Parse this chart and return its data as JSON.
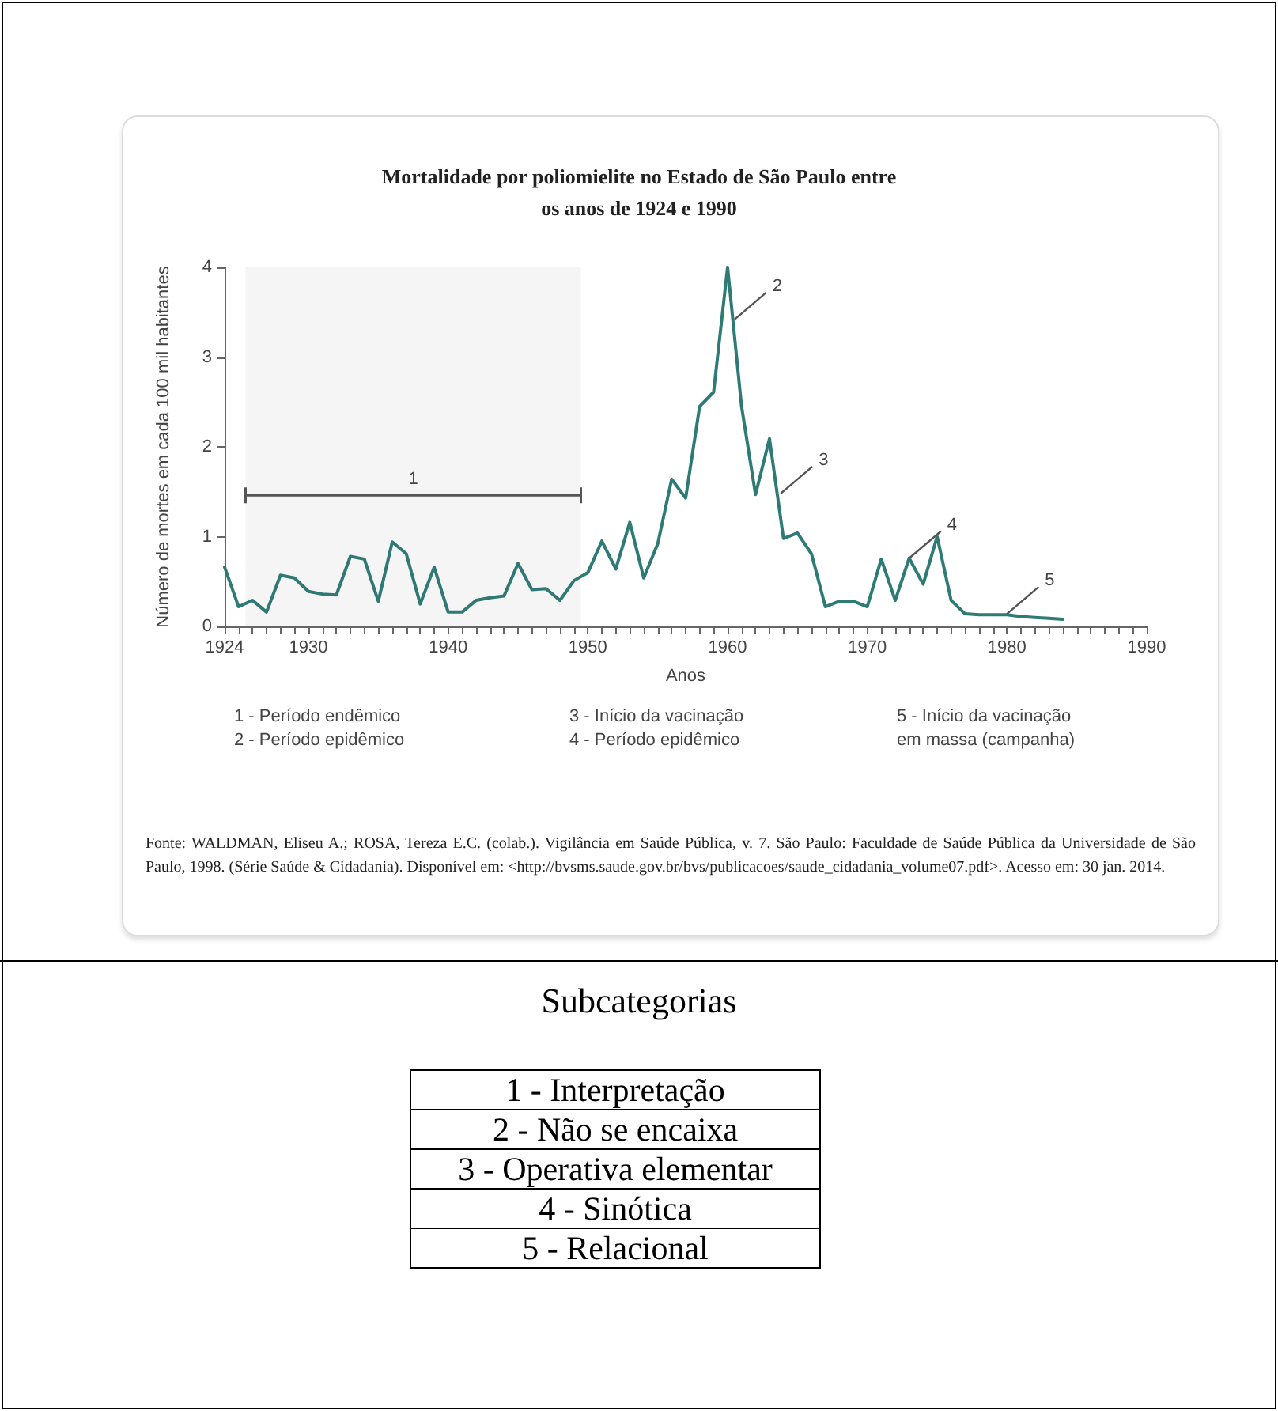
{
  "chart_data": [
    {
      "type": "line",
      "title": "Mortalidade por poliomielite no Estado de São Paulo entre os anos de 1924 e 1990",
      "xlabel": "Anos",
      "ylabel": "Número de mortes em cada 100 mil habitantes",
      "x": [
        1924,
        1925,
        1926,
        1927,
        1928,
        1929,
        1930,
        1931,
        1932,
        1933,
        1934,
        1935,
        1936,
        1937,
        1938,
        1939,
        1940,
        1941,
        1942,
        1943,
        1944,
        1945,
        1946,
        1947,
        1948,
        1949,
        1950,
        1951,
        1952,
        1953,
        1954,
        1955,
        1956,
        1957,
        1958,
        1959,
        1960,
        1961,
        1962,
        1963,
        1964,
        1965,
        1966,
        1967,
        1968,
        1969,
        1970,
        1971,
        1972,
        1973,
        1974,
        1975,
        1976,
        1977,
        1978,
        1979,
        1980,
        1981,
        1982,
        1983,
        1984
      ],
      "series": [
        {
          "color": "#2e7b76",
          "values": [
            0.66,
            0.22,
            0.29,
            0.16,
            0.57,
            0.54,
            0.39,
            0.36,
            0.35,
            0.78,
            0.75,
            0.28,
            0.94,
            0.81,
            0.25,
            0.66,
            0.16,
            0.16,
            0.29,
            0.32,
            0.34,
            0.7,
            0.41,
            0.42,
            0.29,
            0.51,
            0.6,
            0.95,
            0.64,
            1.16,
            0.54,
            0.92,
            1.64,
            1.43,
            2.45,
            2.61,
            4.0,
            2.45,
            1.47,
            2.09,
            0.98,
            1.04,
            0.81,
            0.22,
            0.28,
            0.28,
            0.22,
            0.75,
            0.29,
            0.76,
            0.47,
            1.0,
            0.29,
            0.14,
            0.13,
            0.13,
            0.13,
            0.11,
            0.1,
            0.09,
            0.08
          ]
        }
      ],
      "xlim": [
        1924,
        1990
      ],
      "xticks": [
        1924,
        {
          "value": 1925,
          "label": null
        },
        {
          "value": 1926,
          "label": null
        },
        {
          "value": 1927,
          "label": null
        },
        {
          "value": 1928,
          "label": null
        },
        {
          "value": 1929,
          "label": null
        },
        1930,
        {
          "value": 1931,
          "label": null
        },
        {
          "value": 1932,
          "label": null
        },
        {
          "value": 1933,
          "label": null
        },
        {
          "value": 1934,
          "label": null
        },
        {
          "value": 1935,
          "label": null
        },
        {
          "value": 1936,
          "label": null
        },
        {
          "value": 1937,
          "label": null
        },
        {
          "value": 1938,
          "label": null
        },
        {
          "value": 1939,
          "label": null
        },
        1940,
        {
          "value": 1941,
          "label": null
        },
        {
          "value": 1942,
          "label": null
        },
        {
          "value": 1943,
          "label": null
        },
        {
          "value": 1944,
          "label": null
        },
        {
          "value": 1945,
          "label": null
        },
        {
          "value": 1946,
          "label": null
        },
        {
          "value": 1947,
          "label": null
        },
        {
          "value": 1948,
          "label": null
        },
        {
          "value": 1949,
          "label": null
        },
        1950,
        {
          "value": 1951,
          "label": null
        },
        {
          "value": 1952,
          "label": null
        },
        {
          "value": 1953,
          "label": null
        },
        {
          "value": 1954,
          "label": null
        },
        {
          "value": 1955,
          "label": null
        },
        {
          "value": 1956,
          "label": null
        },
        {
          "value": 1957,
          "label": null
        },
        {
          "value": 1958,
          "label": null
        },
        {
          "value": 1959,
          "label": null
        },
        1960,
        {
          "value": 1961,
          "label": null
        },
        {
          "value": 1962,
          "label": null
        },
        {
          "value": 1963,
          "label": null
        },
        {
          "value": 1964,
          "label": null
        },
        {
          "value": 1965,
          "label": null
        },
        {
          "value": 1966,
          "label": null
        },
        {
          "value": 1967,
          "label": null
        },
        {
          "value": 1968,
          "label": null
        },
        {
          "value": 1969,
          "label": null
        },
        1970,
        {
          "value": 1971,
          "label": null
        },
        {
          "value": 1972,
          "label": null
        },
        {
          "value": 1973,
          "label": null
        },
        {
          "value": 1974,
          "label": null
        },
        {
          "value": 1975,
          "label": null
        },
        {
          "value": 1976,
          "label": null
        },
        {
          "value": 1977,
          "label": null
        },
        {
          "value": 1978,
          "label": null
        },
        {
          "value": 1979,
          "label": null
        },
        1980,
        {
          "value": 1981,
          "label": null
        },
        {
          "value": 1982,
          "label": null
        },
        {
          "value": 1983,
          "label": null
        },
        {
          "value": 1984,
          "label": null
        },
        {
          "value": 1985,
          "label": null
        },
        {
          "value": 1986,
          "label": null
        },
        {
          "value": 1987,
          "label": null
        },
        {
          "value": 1988,
          "label": null
        },
        {
          "value": 1989,
          "label": null
        },
        1990
      ],
      "ylim": [
        0,
        4
      ],
      "yticks": [
        0,
        1,
        2,
        3,
        4
      ],
      "grid": false,
      "marker": "none",
      "line_style": "solid",
      "bands": [
        {
          "axis": "x",
          "from": 1925.5,
          "to": 1949.5,
          "label": "1",
          "color": "#555555"
        }
      ],
      "annotations": [
        {
          "text": "2",
          "x": 1960.5,
          "y": 3.42
        },
        {
          "text": "3",
          "x": 1963.8,
          "y": 1.48
        },
        {
          "text": "4",
          "x": 1973,
          "y": 0.76
        },
        {
          "text": "5",
          "x": 1980,
          "y": 0.14
        },
        "1 - Período endêmico",
        "2 - Período epidêmico",
        "3 - Início da vacinação",
        "4 - Período epidêmico",
        "5 - Início da vacinação em massa (campanha)",
        "Fonte: WALDMAN, Eliseu A.; ROSA, Tereza E.C. (colab.). Vigilância em Saúde Pública, v. 7. São Paulo: Faculdade de Saúde Pública da Universidade de São Paulo, 1998. (Série Saúde & Cidadania). Disponível em: <http://bvsms.saude.gov.br/bvs/publicacoes/saude_cidadania_volume07.pdf>. Acesso em: 30 jan. 2014."
      ]
    },
    {
      "type": "other",
      "title": "Subcategorias",
      "annotations": [
        "1 - Interpretação",
        "2 - Não se encaixa",
        "3 - Operativa elementar",
        "4 - Sinótica",
        "5 - Relacional"
      ]
    }
  ]
}
